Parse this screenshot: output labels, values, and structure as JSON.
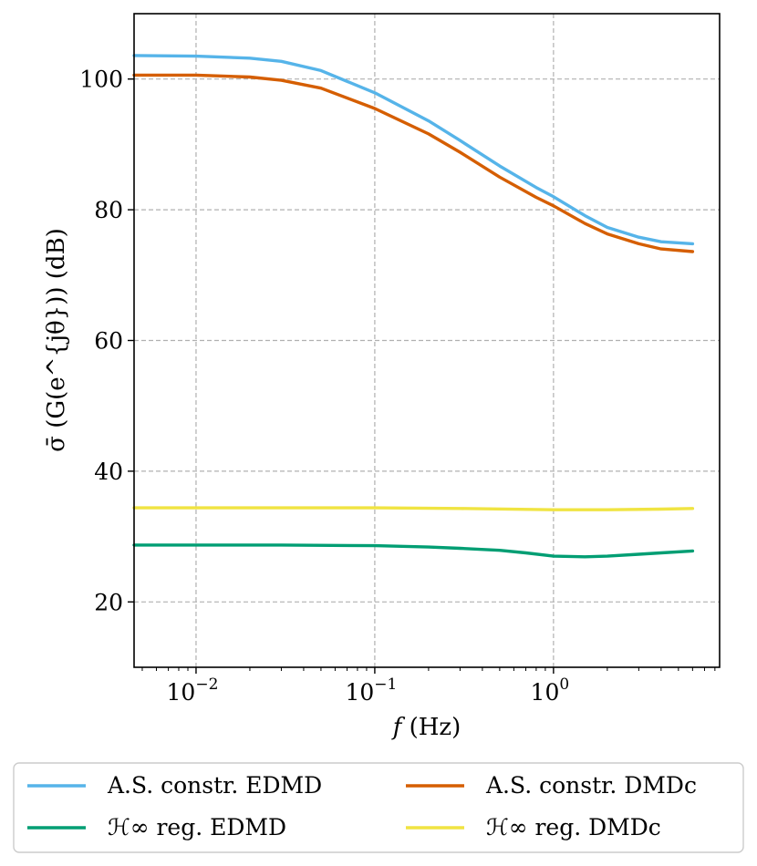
{
  "chart_data": {
    "type": "line",
    "xscale": "log",
    "xlim": [
      0.0045,
      8.5
    ],
    "ylim": [
      10,
      110
    ],
    "grid": true,
    "xlabel": "f (Hz)",
    "ylabel": "σ̄ (G(e^{jθ})) (dB)",
    "xticks": [
      {
        "value": 0.01,
        "base": "10",
        "exp": "−2"
      },
      {
        "value": 0.1,
        "base": "10",
        "exp": "−1"
      },
      {
        "value": 1,
        "base": "10",
        "exp": "0"
      }
    ],
    "yticks": [
      20,
      40,
      60,
      80,
      100
    ],
    "legend_position": "bottom",
    "series": [
      {
        "name": "A.S. constr. EDMD",
        "color": "#56B4E9",
        "x": [
          0.0045,
          0.01,
          0.02,
          0.03,
          0.05,
          0.1,
          0.2,
          0.3,
          0.5,
          0.8,
          1.0,
          1.5,
          2.0,
          3.0,
          4.0,
          6.0
        ],
        "y": [
          103.6,
          103.5,
          103.2,
          102.7,
          101.3,
          97.9,
          93.6,
          90.6,
          86.7,
          83.4,
          82.0,
          79.1,
          77.3,
          75.8,
          75.1,
          74.8
        ]
      },
      {
        "name": "A.S. constr. DMDc",
        "color": "#D55E00",
        "x": [
          0.0045,
          0.01,
          0.02,
          0.03,
          0.05,
          0.1,
          0.2,
          0.3,
          0.5,
          0.8,
          1.0,
          1.5,
          2.0,
          3.0,
          4.0,
          6.0
        ],
        "y": [
          100.6,
          100.6,
          100.3,
          99.8,
          98.6,
          95.5,
          91.6,
          88.8,
          85.0,
          81.9,
          80.6,
          77.9,
          76.3,
          74.8,
          74.0,
          73.6
        ]
      },
      {
        "name": "ℋ∞ reg. EDMD",
        "color": "#009E73",
        "x": [
          0.0045,
          0.01,
          0.03,
          0.1,
          0.2,
          0.3,
          0.5,
          0.7,
          1.0,
          1.5,
          2.0,
          3.0,
          4.0,
          6.0
        ],
        "y": [
          28.7,
          28.7,
          28.7,
          28.6,
          28.4,
          28.2,
          27.9,
          27.5,
          27.0,
          26.9,
          27.0,
          27.3,
          27.5,
          27.8
        ]
      },
      {
        "name": "ℋ∞ reg. DMDc",
        "color": "#F0E442",
        "x": [
          0.0045,
          0.01,
          0.03,
          0.1,
          0.3,
          1.0,
          2.0,
          4.0,
          6.0
        ],
        "y": [
          34.4,
          34.4,
          34.4,
          34.4,
          34.3,
          34.1,
          34.1,
          34.2,
          34.3
        ]
      }
    ]
  }
}
